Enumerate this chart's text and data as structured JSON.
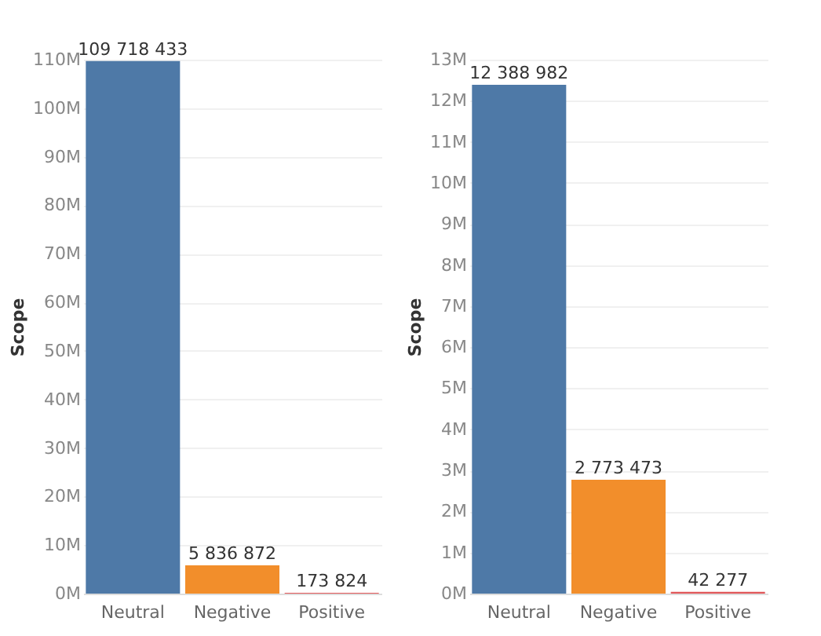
{
  "chart_data": [
    {
      "type": "bar",
      "ylabel": "Scope",
      "categories": [
        "Neutral",
        "Negative",
        "Positive"
      ],
      "values": [
        109718433,
        5836872,
        173824
      ],
      "colors": [
        "#4e79a7",
        "#f28e2b",
        "#e15759"
      ],
      "value_labels": [
        "109 718 433",
        "5 836 872",
        "173 824"
      ],
      "ylim": [
        0,
        110000000
      ],
      "yticks": [
        {
          "value": 0,
          "label": "0M"
        },
        {
          "value": 10000000,
          "label": "10M"
        },
        {
          "value": 20000000,
          "label": "20M"
        },
        {
          "value": 30000000,
          "label": "30M"
        },
        {
          "value": 40000000,
          "label": "40M"
        },
        {
          "value": 50000000,
          "label": "50M"
        },
        {
          "value": 60000000,
          "label": "60M"
        },
        {
          "value": 70000000,
          "label": "70M"
        },
        {
          "value": 80000000,
          "label": "80M"
        },
        {
          "value": 90000000,
          "label": "90M"
        },
        {
          "value": 100000000,
          "label": "100M"
        },
        {
          "value": 110000000,
          "label": "110M"
        }
      ],
      "grid": "y"
    },
    {
      "type": "bar",
      "ylabel": "Scope",
      "categories": [
        "Neutral",
        "Negative",
        "Positive"
      ],
      "values": [
        12388982,
        2773473,
        42277
      ],
      "colors": [
        "#4e79a7",
        "#f28e2b",
        "#e15759"
      ],
      "value_labels": [
        "12 388 982",
        "2 773 473",
        "42 277"
      ],
      "ylim": [
        0,
        13000000
      ],
      "yticks": [
        {
          "value": 0,
          "label": "0M"
        },
        {
          "value": 1000000,
          "label": "1M"
        },
        {
          "value": 2000000,
          "label": "2M"
        },
        {
          "value": 3000000,
          "label": "3M"
        },
        {
          "value": 4000000,
          "label": "4M"
        },
        {
          "value": 5000000,
          "label": "5M"
        },
        {
          "value": 6000000,
          "label": "6M"
        },
        {
          "value": 7000000,
          "label": "7M"
        },
        {
          "value": 8000000,
          "label": "8M"
        },
        {
          "value": 9000000,
          "label": "9M"
        },
        {
          "value": 10000000,
          "label": "10M"
        },
        {
          "value": 11000000,
          "label": "11M"
        },
        {
          "value": 12000000,
          "label": "12M"
        },
        {
          "value": 13000000,
          "label": "13M"
        }
      ],
      "grid": "y"
    }
  ]
}
